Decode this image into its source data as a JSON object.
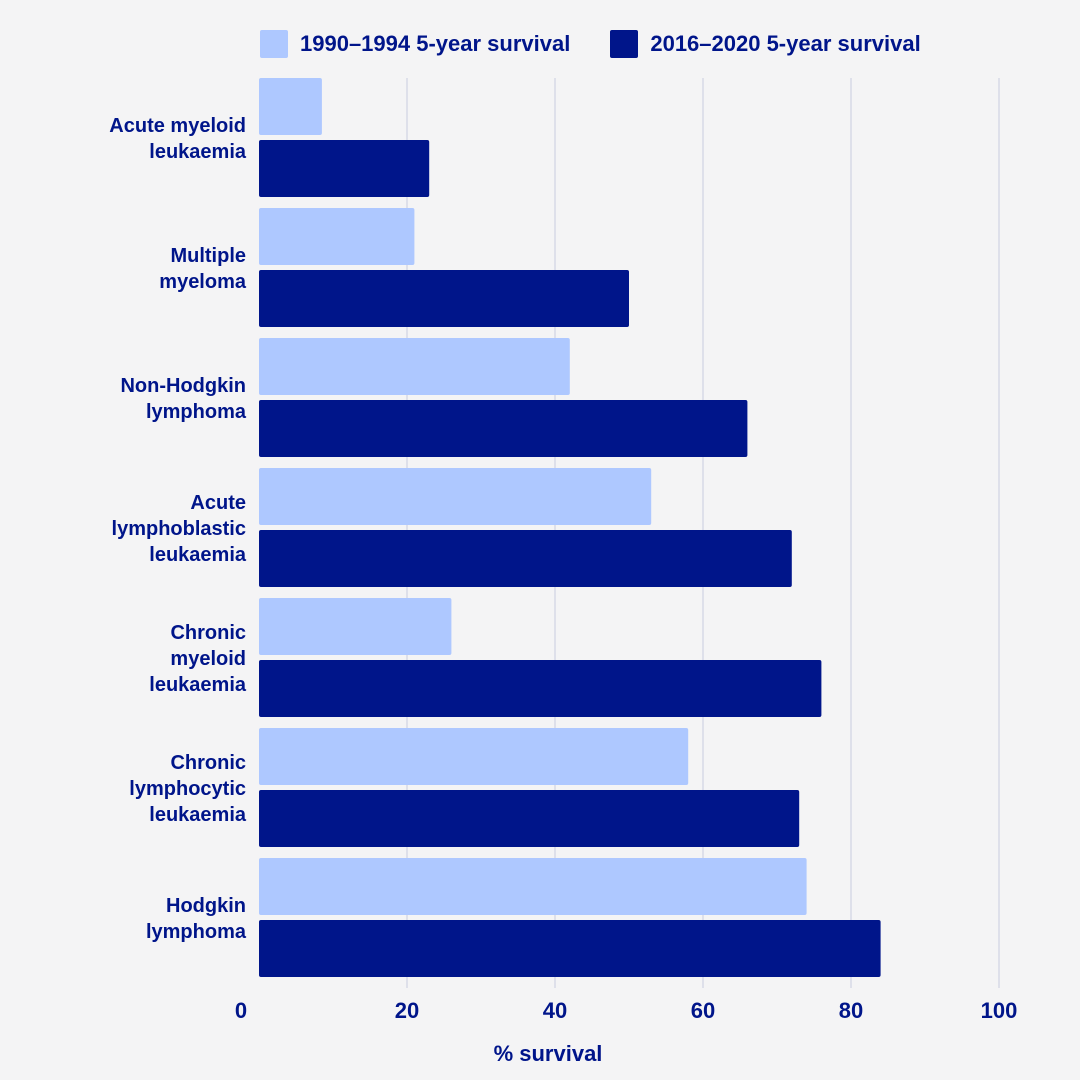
{
  "legend": [
    {
      "label": "1990–1994 5-year survival",
      "color": "#aec8ff"
    },
    {
      "label": "2016–2020 5-year survival",
      "color": "#00158a"
    }
  ],
  "chart_data": {
    "type": "bar",
    "orientation": "horizontal",
    "categories": [
      [
        "Acute myeloid",
        "leukaemia"
      ],
      [
        "Multiple",
        "myeloma"
      ],
      [
        "Non-Hodgkin",
        "lymphoma"
      ],
      [
        "Acute",
        "lymphoblastic",
        "leukaemia"
      ],
      [
        "Chronic",
        "myeloid",
        "leukaemia"
      ],
      [
        "Chronic",
        "lymphocytic",
        "leukaemia"
      ],
      [
        "Hodgkin",
        "lymphoma"
      ]
    ],
    "series": [
      {
        "name": "1990–1994 5-year survival",
        "color": "#aec8ff",
        "values": [
          8.5,
          21,
          42,
          53,
          26,
          58,
          74
        ]
      },
      {
        "name": "2016–2020 5-year survival",
        "color": "#00158a",
        "values": [
          23,
          50,
          66,
          72,
          76,
          73,
          84
        ]
      }
    ],
    "xlabel": "% survival",
    "xlim": [
      0,
      100
    ],
    "xticks": [
      0,
      20,
      40,
      60,
      80,
      100
    ],
    "grid": true,
    "legend_position": "top"
  }
}
